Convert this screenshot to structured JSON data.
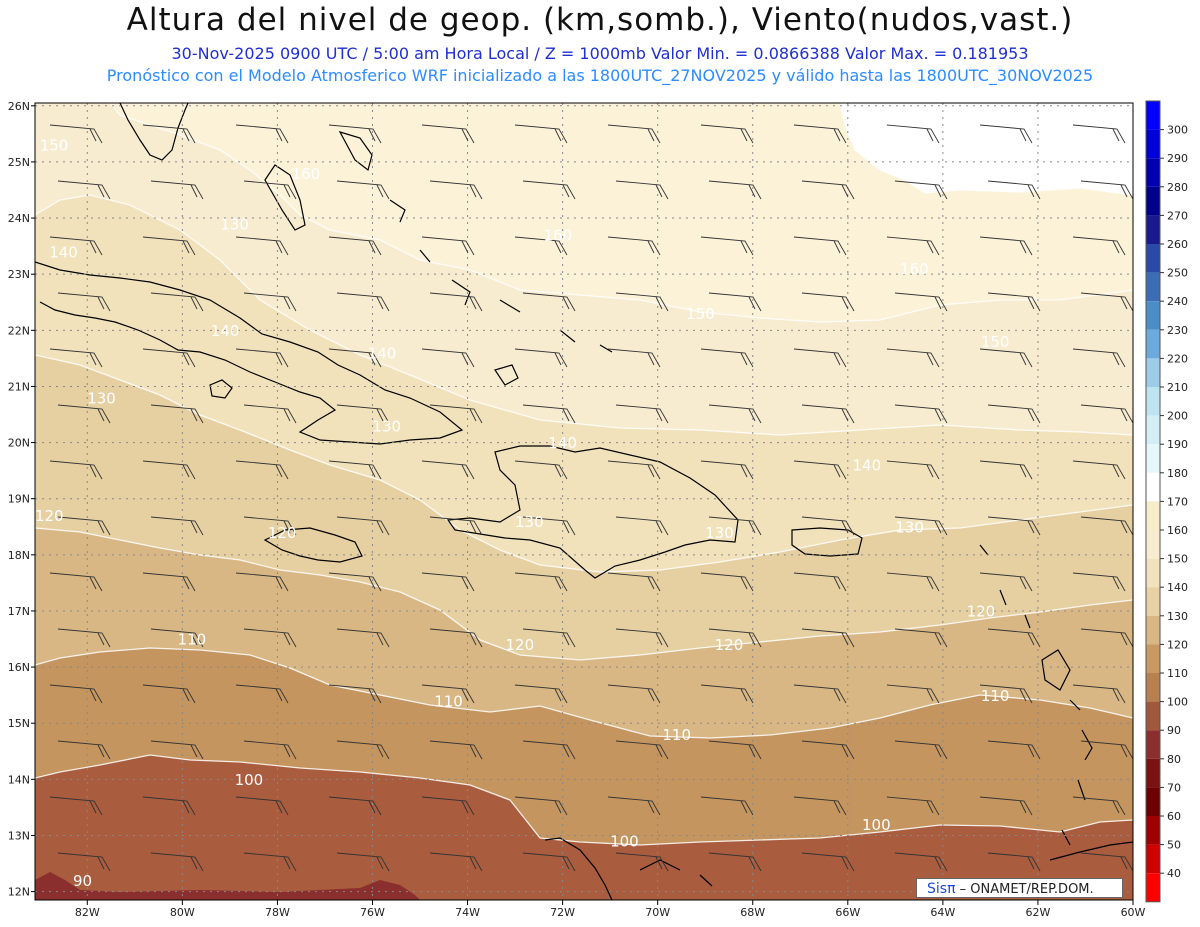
{
  "header": {
    "title": "Altura del nivel de geop. (km,somb.), Viento(nudos,vast.)",
    "subtitle": "30-Nov-2025  0900 UTC / 5:00 am Hora Local / Z = 1000mb  Valor Min. = 0.0866388   Valor Max. = 0.181953",
    "model_info": "Pronóstico con el Modelo Atmosferico WRF inicializado a las 1800UTC_27NOV2025 y válido hasta las  1800UTC_30NOV2025"
  },
  "map": {
    "lon_ticks": [
      "82W",
      "80W",
      "78W",
      "76W",
      "74W",
      "72W",
      "70W",
      "68W",
      "66W",
      "64W",
      "62W",
      "60W"
    ],
    "lat_ticks": [
      "26N",
      "25N",
      "24N",
      "23N",
      "22N",
      "21N",
      "20N",
      "19N",
      "18N",
      "17N",
      "16N",
      "15N",
      "14N",
      "13N",
      "12N"
    ],
    "contour_labels": [
      {
        "text": "150",
        "lon": -82.7,
        "lat": 25.2
      },
      {
        "text": "160",
        "lon": -77.4,
        "lat": 24.7
      },
      {
        "text": "130",
        "lon": -78.9,
        "lat": 23.8
      },
      {
        "text": "140",
        "lon": -82.5,
        "lat": 23.3
      },
      {
        "text": "160",
        "lon": -72.1,
        "lat": 23.6
      },
      {
        "text": "160",
        "lon": -64.6,
        "lat": 23.0
      },
      {
        "text": "150",
        "lon": -69.1,
        "lat": 22.2
      },
      {
        "text": "140",
        "lon": -79.1,
        "lat": 21.9
      },
      {
        "text": "150",
        "lon": -62.9,
        "lat": 21.7
      },
      {
        "text": "140",
        "lon": -75.8,
        "lat": 21.5
      },
      {
        "text": "130",
        "lon": -81.7,
        "lat": 20.7
      },
      {
        "text": "130",
        "lon": -75.7,
        "lat": 20.2
      },
      {
        "text": "140",
        "lon": -72.0,
        "lat": 19.9
      },
      {
        "text": "140",
        "lon": -65.6,
        "lat": 19.5
      },
      {
        "text": "120",
        "lon": -82.8,
        "lat": 18.6
      },
      {
        "text": "130",
        "lon": -72.7,
        "lat": 18.5
      },
      {
        "text": "130",
        "lon": -68.7,
        "lat": 18.3
      },
      {
        "text": "130",
        "lon": -64.7,
        "lat": 18.4
      },
      {
        "text": "120",
        "lon": -77.9,
        "lat": 18.3
      },
      {
        "text": "120",
        "lon": -63.2,
        "lat": 16.9
      },
      {
        "text": "120",
        "lon": -72.9,
        "lat": 16.3
      },
      {
        "text": "120",
        "lon": -68.5,
        "lat": 16.3
      },
      {
        "text": "110",
        "lon": -79.8,
        "lat": 16.4
      },
      {
        "text": "110",
        "lon": -74.4,
        "lat": 15.3
      },
      {
        "text": "110",
        "lon": -62.9,
        "lat": 15.4
      },
      {
        "text": "110",
        "lon": -69.6,
        "lat": 14.7
      },
      {
        "text": "100",
        "lon": -78.6,
        "lat": 13.9
      },
      {
        "text": "100",
        "lon": -70.7,
        "lat": 12.8
      },
      {
        "text": "100",
        "lon": -65.4,
        "lat": 13.1
      },
      {
        "text": "90",
        "lon": -82.1,
        "lat": 12.1
      }
    ]
  },
  "colorbar": {
    "labels": [
      "300",
      "290",
      "280",
      "270",
      "260",
      "250",
      "240",
      "230",
      "220",
      "210",
      "200",
      "190",
      "180",
      "170",
      "160",
      "150",
      "140",
      "130",
      "120",
      "110",
      "100",
      "90",
      "80",
      "70",
      "60",
      "50",
      "40"
    ],
    "colors": [
      "#0000ff",
      "#0000d8",
      "#0000b0",
      "#00008a",
      "#1a1a8c",
      "#2a4aa8",
      "#3a6db4",
      "#4a8ec8",
      "#6aaadc",
      "#9ccce8",
      "#bde4f0",
      "#d4eef6",
      "#e6f7fb",
      "#ffffff",
      "#f6edc9",
      "#f8ecd0",
      "#f2e2bb",
      "#e8d2a4",
      "#d8b784",
      "#c99962",
      "#b9804f",
      "#a0573a",
      "#8b2e2e",
      "#7b1212",
      "#6d0000",
      "#a00000",
      "#d00000",
      "#ff0000"
    ]
  },
  "credit": {
    "brand": "Sisπ",
    "text": " – ONAMET/REP.DOM."
  }
}
